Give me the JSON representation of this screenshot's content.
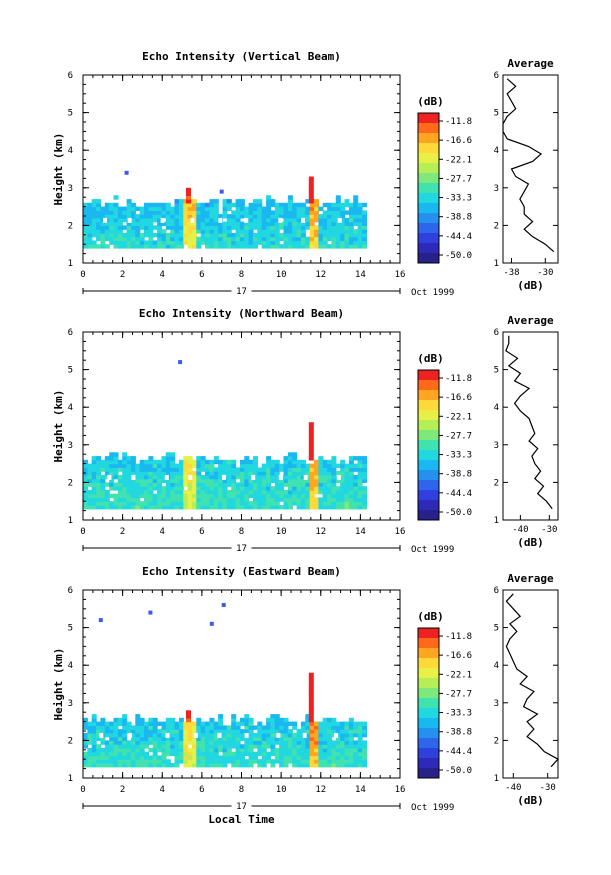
{
  "panels": [
    {
      "title": "Echo Intensity (Vertical Beam)",
      "ylabel": "Height (km)",
      "date_label": "17",
      "date_suffix": "Oct 1999",
      "xlabel": "",
      "avg_title": "Average",
      "avg_unit": "(dB)",
      "avg_ticks": [
        "-38",
        "-30"
      ]
    },
    {
      "title": "Echo Intensity (Northward Beam)",
      "ylabel": "Height (km)",
      "date_label": "17",
      "date_suffix": "Oct 1999",
      "xlabel": "",
      "avg_title": "Average",
      "avg_unit": "(dB)",
      "avg_ticks": [
        "-40",
        "-30"
      ]
    },
    {
      "title": "Echo Intensity (Eastward Beam)",
      "ylabel": "Height (km)",
      "date_label": "17",
      "date_suffix": "Oct 1999",
      "xlabel": "Local Time",
      "avg_title": "Average",
      "avg_unit": "(dB)",
      "avg_ticks": [
        "-40",
        "-30"
      ]
    }
  ],
  "colorbar": {
    "unit": "(dB)",
    "labels": [
      "-11.8",
      "-16.6",
      "-22.1",
      "-27.7",
      "-33.3",
      "-38.8",
      "-44.4",
      "-50.0"
    ],
    "colors": [
      "#ee2222",
      "#ff6a1a",
      "#ffa522",
      "#ffd83a",
      "#e6f046",
      "#b5ee55",
      "#7ee87a",
      "#40e2b0",
      "#22d8e0",
      "#1ab8f0",
      "#2590ee",
      "#2d66ea",
      "#3040dc",
      "#2d2ab8",
      "#26228a"
    ]
  },
  "chart_data": [
    {
      "type": "heatmap",
      "title": "Echo Intensity (Vertical Beam)",
      "xlabel": "",
      "ylabel": "Height (km)",
      "xlim": [
        0,
        16
      ],
      "ylim": [
        1,
        6
      ],
      "x_ticks": [
        "0",
        "2",
        "4",
        "6",
        "8",
        "10",
        "12",
        "14",
        "16"
      ],
      "y_ticks": [
        "1",
        "2",
        "3",
        "4",
        "5",
        "6"
      ],
      "echo_layer": {
        "time_range": [
          0,
          14.3
        ],
        "height_range": [
          1.4,
          2.6
        ],
        "dominant_dB": -36
      },
      "bright_columns": [
        {
          "time": 5.3,
          "top_km": 3.0,
          "max_dB": -22
        },
        {
          "time": 11.5,
          "top_km": 3.3,
          "max_dB": -20
        }
      ],
      "isolated_echoes": [
        {
          "time": 2.2,
          "height_km": 3.4
        },
        {
          "time": 7.0,
          "height_km": 2.9
        }
      ],
      "average_profile": {
        "xlim": [
          -40,
          -27
        ],
        "height_km": [
          1.3,
          1.5,
          1.7,
          1.9,
          2.1,
          2.3,
          2.5,
          2.7,
          2.9,
          3.1,
          3.3,
          3.5,
          3.7,
          3.9,
          4.1,
          4.3,
          4.5,
          4.7,
          4.9,
          5.1,
          5.3,
          5.5,
          5.7,
          5.9
        ],
        "dB": [
          -28,
          -30,
          -33,
          -35,
          -33,
          -35,
          -35,
          -36,
          -35,
          -34,
          -37,
          -38,
          -33,
          -31,
          -34,
          -39,
          -40,
          -40,
          -39,
          -37,
          -38,
          -39,
          -37,
          -39
        ]
      }
    },
    {
      "type": "heatmap",
      "title": "Echo Intensity (Northward Beam)",
      "xlabel": "",
      "ylabel": "Height (km)",
      "xlim": [
        0,
        16
      ],
      "ylim": [
        1,
        6
      ],
      "x_ticks": [
        "0",
        "2",
        "4",
        "6",
        "8",
        "10",
        "12",
        "14",
        "16"
      ],
      "y_ticks": [
        "1",
        "2",
        "3",
        "4",
        "5",
        "6"
      ],
      "echo_layer": {
        "time_range": [
          0,
          14.3
        ],
        "height_range": [
          1.3,
          2.6
        ],
        "dominant_dB": -35
      },
      "bright_columns": [
        {
          "time": 5.3,
          "top_km": 2.6,
          "max_dB": -24
        },
        {
          "time": 11.5,
          "top_km": 3.6,
          "max_dB": -20
        }
      ],
      "isolated_echoes": [
        {
          "time": 4.9,
          "height_km": 5.2
        }
      ],
      "average_profile": {
        "xlim": [
          -46,
          -27
        ],
        "height_km": [
          1.3,
          1.5,
          1.7,
          1.9,
          2.1,
          2.3,
          2.5,
          2.7,
          2.9,
          3.1,
          3.3,
          3.5,
          3.7,
          3.9,
          4.1,
          4.3,
          4.5,
          4.7,
          4.9,
          5.1,
          5.3,
          5.5,
          5.7,
          5.9
        ],
        "dB": [
          -29,
          -31,
          -34,
          -32,
          -35,
          -33,
          -35,
          -36,
          -34,
          -37,
          -35,
          -36,
          -37,
          -40,
          -42,
          -40,
          -37,
          -42,
          -40,
          -44,
          -41,
          -45,
          -44,
          -44
        ]
      }
    },
    {
      "type": "heatmap",
      "title": "Echo Intensity (Eastward Beam)",
      "xlabel": "Local Time",
      "ylabel": "Height (km)",
      "xlim": [
        0,
        16
      ],
      "ylim": [
        1,
        6
      ],
      "x_ticks": [
        "0",
        "2",
        "4",
        "6",
        "8",
        "10",
        "12",
        "14",
        "16"
      ],
      "y_ticks": [
        "1",
        "2",
        "3",
        "4",
        "5",
        "6"
      ],
      "echo_layer": {
        "time_range": [
          0,
          14.3
        ],
        "height_range": [
          1.3,
          2.5
        ],
        "dominant_dB": -35
      },
      "bright_columns": [
        {
          "time": 5.3,
          "top_km": 2.8,
          "max_dB": -23
        },
        {
          "time": 11.5,
          "top_km": 3.8,
          "max_dB": -18
        }
      ],
      "isolated_echoes": [
        {
          "time": 3.4,
          "height_km": 5.4
        },
        {
          "time": 0.9,
          "height_km": 5.2
        },
        {
          "time": 6.5,
          "height_km": 5.1
        },
        {
          "time": 7.1,
          "height_km": 5.6
        }
      ],
      "average_profile": {
        "xlim": [
          -43,
          -27
        ],
        "height_km": [
          1.3,
          1.5,
          1.7,
          1.9,
          2.1,
          2.3,
          2.5,
          2.7,
          2.9,
          3.1,
          3.3,
          3.5,
          3.7,
          3.9,
          4.1,
          4.3,
          4.5,
          4.7,
          4.9,
          5.1,
          5.3,
          5.5,
          5.7,
          5.9
        ],
        "dB": [
          -29,
          -27,
          -31,
          -33,
          -36,
          -34,
          -36,
          -33,
          -37,
          -36,
          -34,
          -38,
          -36,
          -39,
          -40,
          -41,
          -42,
          -41,
          -39,
          -41,
          -38,
          -40,
          -42,
          -40
        ]
      }
    }
  ]
}
